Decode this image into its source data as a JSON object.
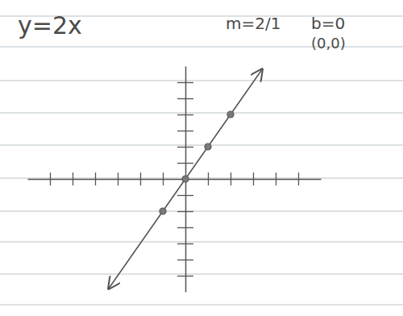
{
  "chart_data": {
    "type": "line",
    "title": "y=2x",
    "annotations": [
      "m=2/1",
      "b=0",
      "(0,0)"
    ],
    "xlim": [
      -7,
      6
    ],
    "ylim": [
      -7,
      7
    ],
    "xticks": [
      -6,
      -5,
      -4,
      -3,
      -2,
      -1,
      1,
      2,
      3,
      4,
      5
    ],
    "yticks": [
      -6,
      -5,
      -4,
      -3,
      -2,
      -1,
      1,
      2,
      3,
      4,
      5,
      6
    ],
    "tick_labels": false,
    "grid": false,
    "series": [
      {
        "type": "line",
        "x": [
          -3.4,
          3.4
        ],
        "values": [
          -6.8,
          6.8
        ],
        "line_style": "solid",
        "color": "#555555"
      },
      {
        "type": "scatter",
        "x": [
          -1,
          0,
          1,
          2
        ],
        "values": [
          -2,
          0,
          2,
          4
        ],
        "marker": "circle",
        "color": "#555555"
      }
    ]
  }
}
